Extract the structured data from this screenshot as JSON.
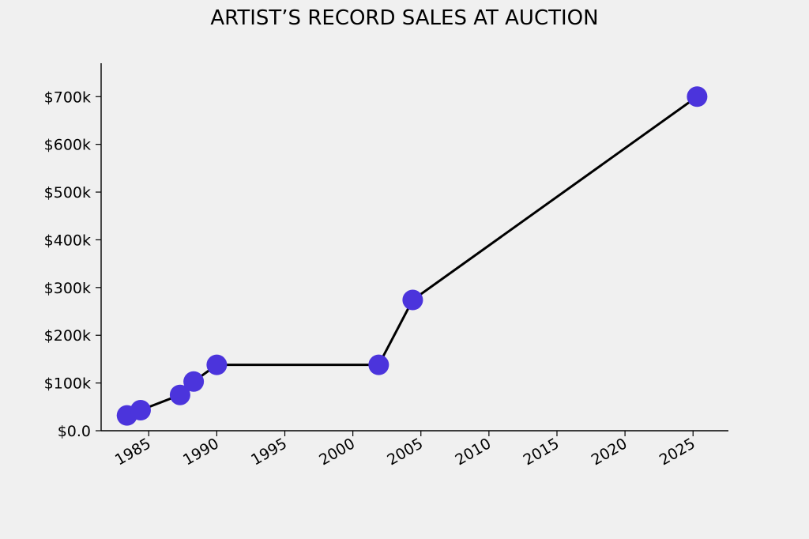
{
  "chart_data": {
    "type": "line",
    "title": "ARTIST’S RECORD SALES AT AUCTION",
    "xlabel": "",
    "ylabel": "",
    "x_ticks": [
      "1985",
      "1990",
      "1995",
      "2000",
      "2005",
      "2010",
      "2015",
      "2020",
      "2025"
    ],
    "y_ticks": [
      "$0.0",
      "$100k",
      "$200k",
      "$300k",
      "$400k",
      "$500k",
      "$600k",
      "$700k"
    ],
    "xlim": [
      1981.5,
      1927.6
    ],
    "ylim": [
      0,
      770000
    ],
    "grid": false,
    "series": [
      {
        "x": [
          1983.4,
          1984.4,
          1987.3,
          1988.3,
          1990.0,
          2001.9,
          2004.4,
          2025.3
        ],
        "y": [
          32000,
          43000,
          75000,
          103000,
          138000,
          138000,
          274000,
          700000
        ]
      }
    ],
    "colors": {
      "line": "#000000",
      "marker": "#4b34dc",
      "background": "#f0f0f0"
    }
  }
}
